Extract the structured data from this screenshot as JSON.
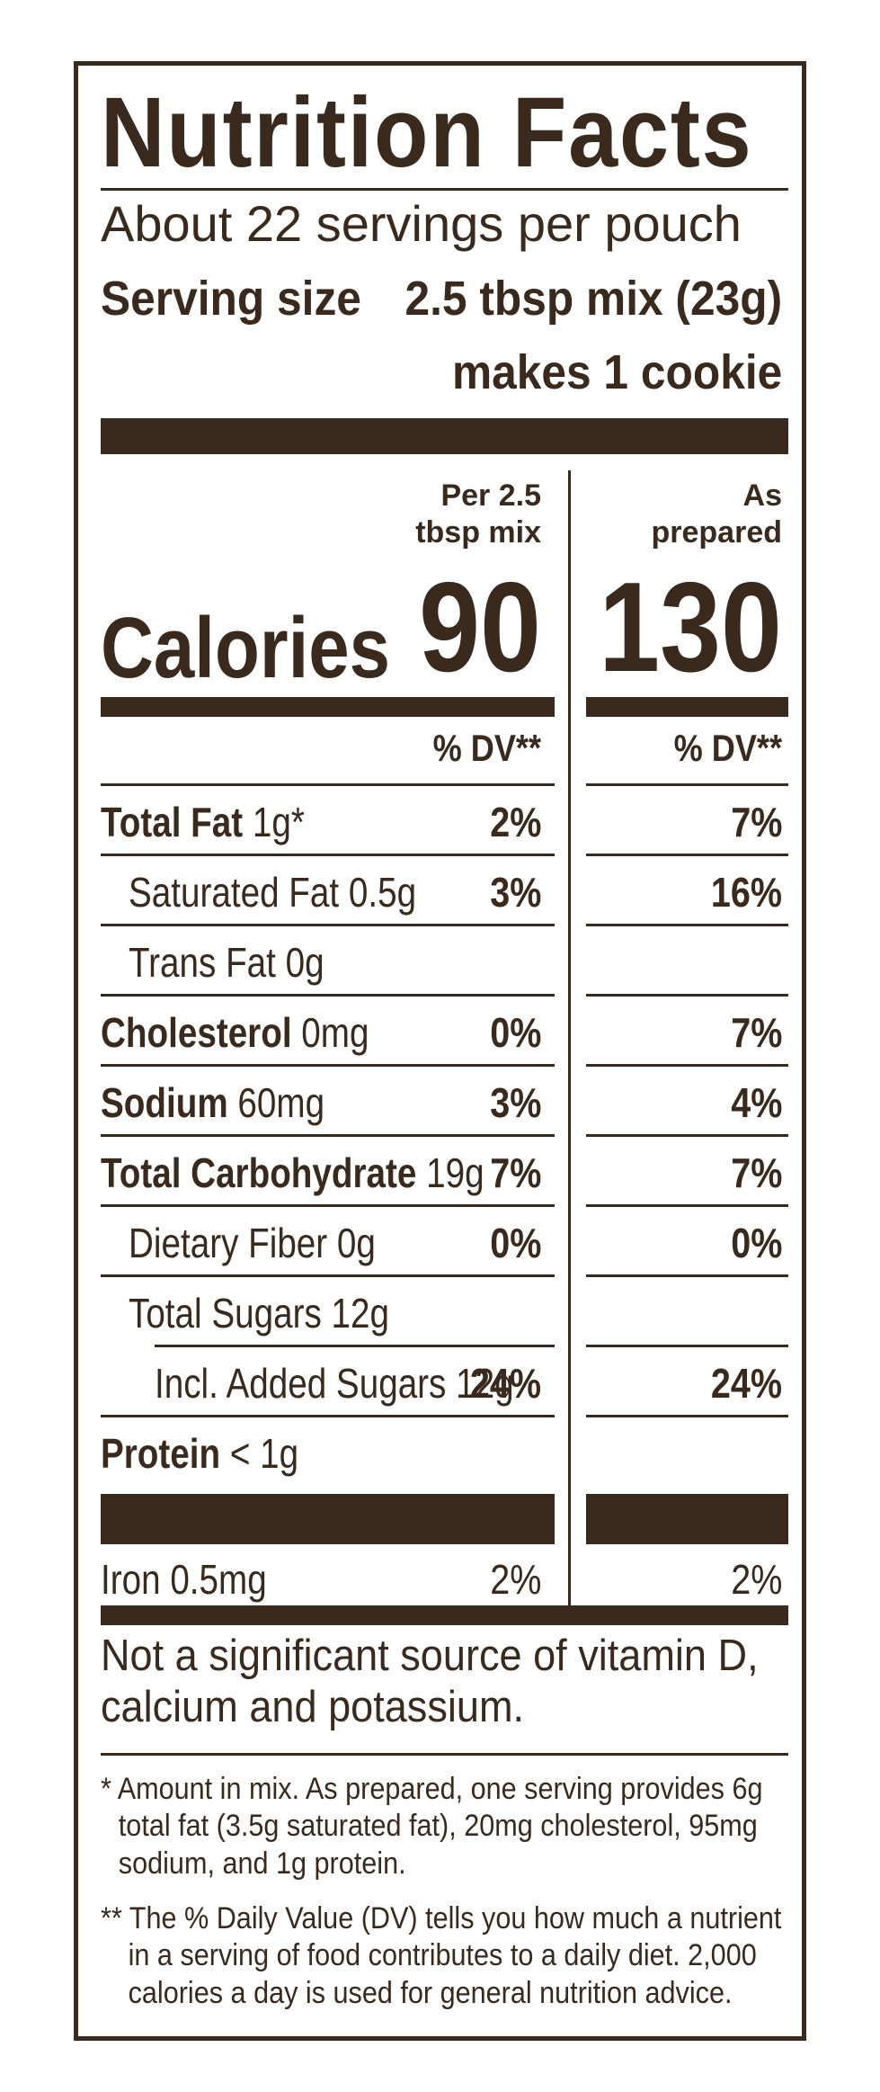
{
  "title": "Nutrition Facts",
  "servings_per_container": "About 22 servings per pouch",
  "serving_size_label": "Serving size",
  "serving_size_value": "2.5 tbsp mix (23g)",
  "serving_makes": "makes 1 cookie",
  "columns": {
    "mix_header_line1": "Per 2.5",
    "mix_header_line2": "tbsp mix",
    "prepared_header_line1": "As",
    "prepared_header_line2": "prepared"
  },
  "calories_label": "Calories",
  "calories_mix": "90",
  "calories_prepared": "130",
  "dv_header_mix": "% DV**",
  "dv_header_prepared": "% DV**",
  "nutrients": [
    {
      "name": "Total Fat",
      "amount": "1g*",
      "dv_mix": "2%",
      "dv_prepared": "7%"
    },
    {
      "name": "Saturated Fat",
      "amount": "0.5g",
      "dv_mix": "3%",
      "dv_prepared": "16%"
    },
    {
      "name": "Trans Fat",
      "amount": "0g",
      "dv_mix": "",
      "dv_prepared": ""
    },
    {
      "name": "Cholesterol",
      "amount": "0mg",
      "dv_mix": "0%",
      "dv_prepared": "7%"
    },
    {
      "name": "Sodium",
      "amount": "60mg",
      "dv_mix": "3%",
      "dv_prepared": "4%"
    },
    {
      "name": "Total Carbohydrate",
      "amount": "19g",
      "dv_mix": "7%",
      "dv_prepared": "7%"
    },
    {
      "name": "Dietary Fiber",
      "amount": "0g",
      "dv_mix": "0%",
      "dv_prepared": "0%"
    },
    {
      "name": "Total Sugars",
      "amount": "12g",
      "dv_mix": "",
      "dv_prepared": ""
    },
    {
      "name": "Incl. Added Sugars",
      "amount": "12g",
      "dv_mix": "24%",
      "dv_prepared": "24%"
    },
    {
      "name": "Protein",
      "amount": "< 1g",
      "dv_mix": "",
      "dv_prepared": ""
    },
    {
      "name": "Iron",
      "amount": "0.5mg",
      "dv_mix": "2%",
      "dv_prepared": "2%"
    }
  ],
  "not_significant_line1": "Not a significant source of vitamin D,",
  "not_significant_line2": "calcium and potassium.",
  "footnote1_line1": "* Amount in mix. As prepared, one serving provides 6g",
  "footnote1_line2": "total fat (3.5g saturated fat), 20mg cholesterol, 95mg",
  "footnote1_line3": "sodium, and 1g protein.",
  "footnote2_line1": "** The % Daily Value (DV) tells you how much a nutrient",
  "footnote2_line2": "in a serving of food contributes to a daily diet. 2,000",
  "footnote2_line3": "calories a day is used for general nutrition advice.",
  "colors": {
    "ink": "#3a2a1e",
    "background": "#ffffff"
  }
}
